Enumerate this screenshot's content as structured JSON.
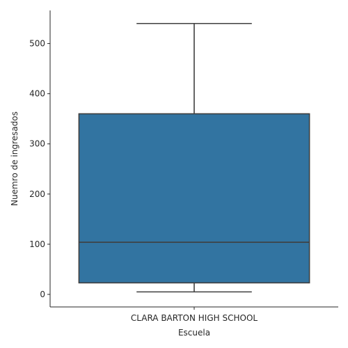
{
  "chart_data": {
    "type": "boxplot",
    "title": "",
    "xlabel": "Escuela",
    "ylabel": "Nuemro de ingresados",
    "categories": [
      "CLARA BARTON HIGH SCHOOL"
    ],
    "boxes": [
      {
        "category": "CLARA BARTON HIGH SCHOOL",
        "whisker_low": 5,
        "q1": 23,
        "median": 104,
        "q3": 360,
        "whisker_high": 540
      }
    ],
    "ylim": [
      -25,
      566
    ],
    "yticks": [
      0,
      100,
      200,
      300,
      400,
      500
    ],
    "grid": false,
    "legend": "none",
    "colors": {
      "box_fill": "#3274a1",
      "lines": "#3f3f3f",
      "axis": "#262626"
    }
  }
}
